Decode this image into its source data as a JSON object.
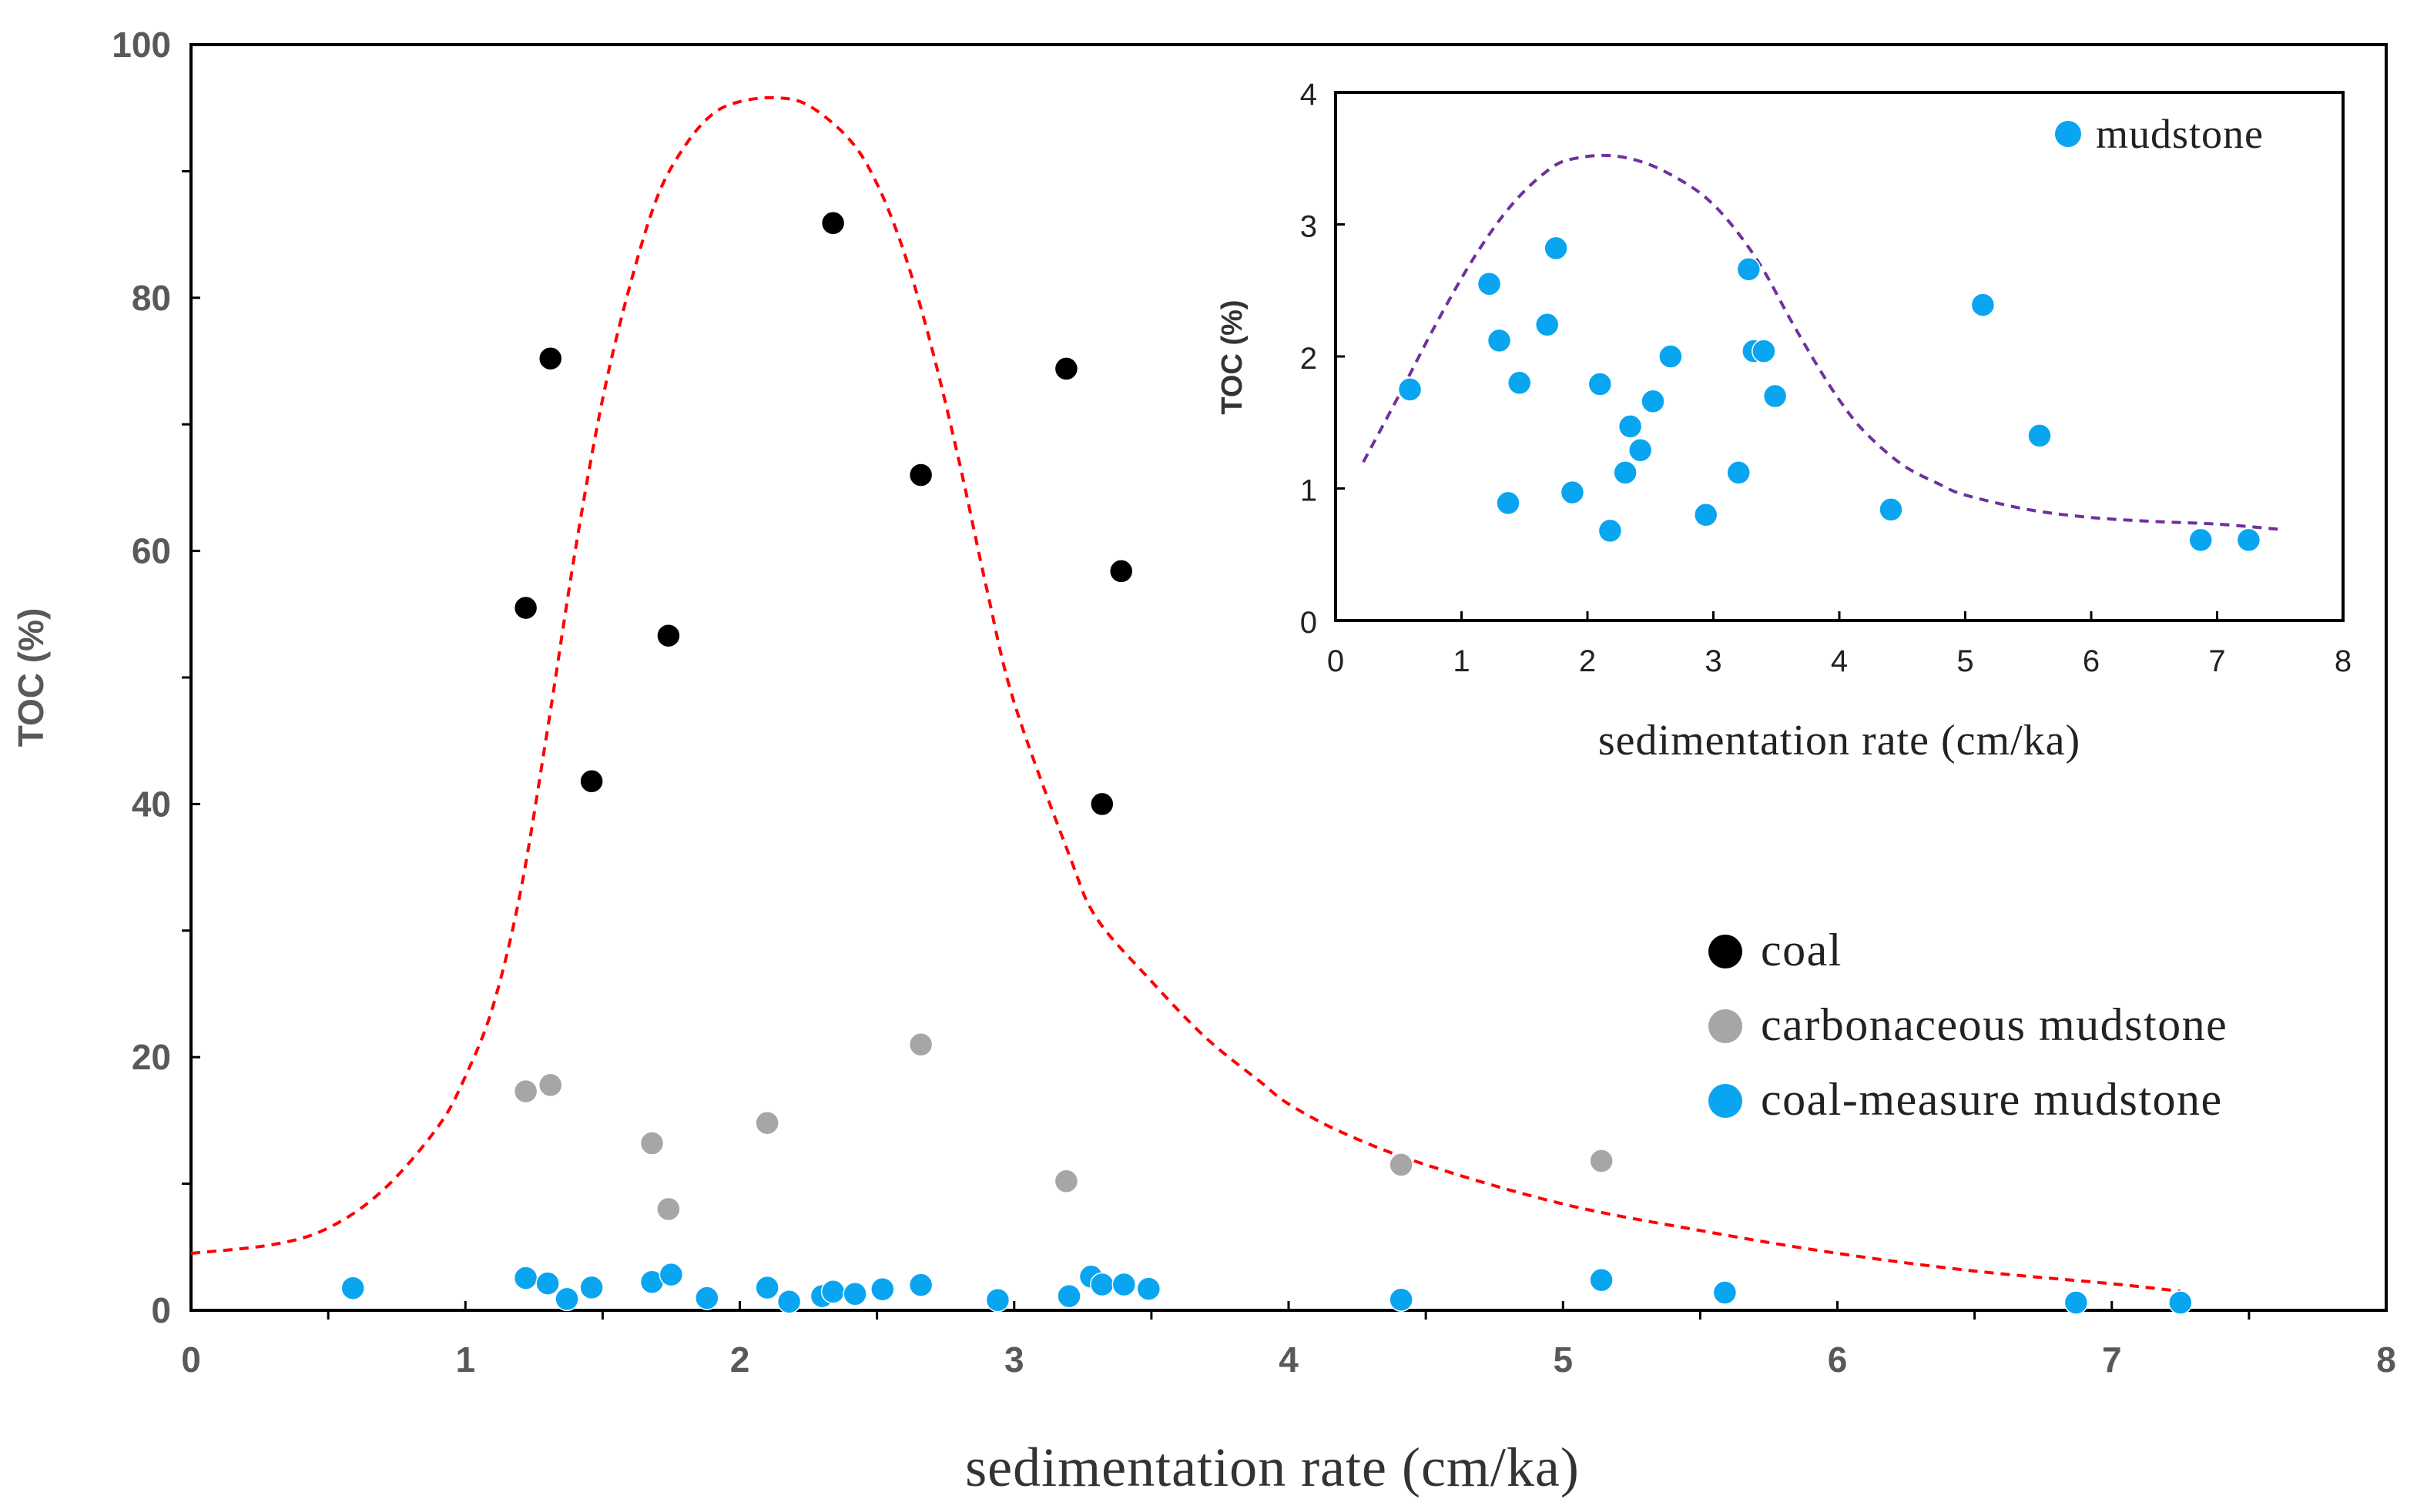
{
  "chart_data": [
    {
      "id": "main",
      "type": "scatter",
      "title": "",
      "xlabel": "sedimentation rate (cm/ka)",
      "ylabel": "TOC (%)",
      "xlim": [
        0,
        8
      ],
      "ylim": [
        0,
        100
      ],
      "x_ticks": [
        "0",
        "1",
        "2",
        "3",
        "4",
        "5",
        "6",
        "7",
        "8"
      ],
      "y_ticks": [
        "0",
        "20",
        "40",
        "60",
        "80",
        "100"
      ],
      "grid": false,
      "legend_position": "bottom-right",
      "series": [
        {
          "name": "coal",
          "color": "#000000",
          "points": [
            [
              1.22,
              55.5
            ],
            [
              1.31,
              75.2
            ],
            [
              1.46,
              41.8
            ],
            [
              1.74,
              53.3
            ],
            [
              2.34,
              85.9
            ],
            [
              2.66,
              66.0
            ],
            [
              3.19,
              74.4
            ],
            [
              3.32,
              40.0
            ],
            [
              3.39,
              58.4
            ]
          ]
        },
        {
          "name": "carbonaceous mudstone",
          "color": "#a6a6a6",
          "points": [
            [
              1.22,
              17.3
            ],
            [
              1.31,
              17.8
            ],
            [
              1.68,
              13.2
            ],
            [
              1.74,
              8.0
            ],
            [
              2.1,
              14.8
            ],
            [
              2.66,
              21.0
            ],
            [
              3.19,
              10.2
            ],
            [
              4.41,
              11.5
            ],
            [
              5.14,
              11.8
            ]
          ]
        },
        {
          "name": "coal-measure mudstone",
          "color": "#0aa5f0",
          "points": [
            [
              0.59,
              1.75
            ],
            [
              1.22,
              2.55
            ],
            [
              1.3,
              2.12
            ],
            [
              1.37,
              0.89
            ],
            [
              1.46,
              1.8
            ],
            [
              1.68,
              2.24
            ],
            [
              1.75,
              2.82
            ],
            [
              1.88,
              0.97
            ],
            [
              2.1,
              1.79
            ],
            [
              2.18,
              0.68
            ],
            [
              2.3,
              1.12
            ],
            [
              2.34,
              1.47
            ],
            [
              2.42,
              1.29
            ],
            [
              2.52,
              1.66
            ],
            [
              2.66,
              2.0
            ],
            [
              2.94,
              0.8
            ],
            [
              3.2,
              1.12
            ],
            [
              3.28,
              2.66
            ],
            [
              3.32,
              2.04
            ],
            [
              3.4,
              2.04
            ],
            [
              3.49,
              1.7
            ],
            [
              4.41,
              0.84
            ],
            [
              5.14,
              2.39
            ],
            [
              5.59,
              1.4
            ],
            [
              6.87,
              0.61
            ],
            [
              7.25,
              0.61
            ]
          ]
        }
      ],
      "trend_curve": {
        "style": "dashed",
        "color": "#ff0000",
        "points": [
          [
            0,
            4.5
          ],
          [
            0.3,
            5.2
          ],
          [
            0.5,
            6.5
          ],
          [
            0.7,
            9.5
          ],
          [
            0.9,
            14.5
          ],
          [
            1.0,
            18.5
          ],
          [
            1.1,
            24
          ],
          [
            1.2,
            33
          ],
          [
            1.3,
            46
          ],
          [
            1.4,
            60
          ],
          [
            1.5,
            72
          ],
          [
            1.6,
            81
          ],
          [
            1.7,
            88
          ],
          [
            1.8,
            92
          ],
          [
            1.9,
            94.5
          ],
          [
            2.0,
            95.5
          ],
          [
            2.13,
            95.8
          ],
          [
            2.25,
            95.2
          ],
          [
            2.4,
            92.5
          ],
          [
            2.5,
            89
          ],
          [
            2.6,
            83.5
          ],
          [
            2.7,
            76
          ],
          [
            2.8,
            67
          ],
          [
            2.9,
            57
          ],
          [
            3.0,
            48
          ],
          [
            3.2,
            36
          ],
          [
            3.3,
            31
          ],
          [
            3.5,
            26
          ],
          [
            3.7,
            21.5
          ],
          [
            3.9,
            18
          ],
          [
            4.0,
            16.3
          ],
          [
            4.2,
            14
          ],
          [
            4.5,
            11.5
          ],
          [
            5.0,
            8.4
          ],
          [
            5.5,
            6.3
          ],
          [
            6.0,
            4.5
          ],
          [
            6.5,
            3.1
          ],
          [
            7.0,
            2.1
          ],
          [
            7.25,
            1.5
          ]
        ]
      }
    },
    {
      "id": "inset",
      "type": "scatter",
      "title": "",
      "xlabel": "sedimentation rate (cm/ka)",
      "ylabel": "TOC (%)",
      "xlim": [
        0,
        8
      ],
      "ylim": [
        0,
        4
      ],
      "x_ticks": [
        "0",
        "1",
        "2",
        "3",
        "4",
        "5",
        "6",
        "7",
        "8"
      ],
      "y_ticks": [
        "0",
        "1",
        "2",
        "3",
        "4"
      ],
      "grid": false,
      "legend_position": "top-right",
      "series": [
        {
          "name": "mudstone",
          "color": "#0aa5f0",
          "points": [
            [
              0.59,
              1.75
            ],
            [
              1.22,
              2.55
            ],
            [
              1.3,
              2.12
            ],
            [
              1.37,
              0.89
            ],
            [
              1.46,
              1.8
            ],
            [
              1.68,
              2.24
            ],
            [
              1.75,
              2.82
            ],
            [
              1.88,
              0.97
            ],
            [
              2.1,
              1.79
            ],
            [
              2.18,
              0.68
            ],
            [
              2.3,
              1.12
            ],
            [
              2.34,
              1.47
            ],
            [
              2.42,
              1.29
            ],
            [
              2.52,
              1.66
            ],
            [
              2.66,
              2.0
            ],
            [
              2.94,
              0.8
            ],
            [
              3.2,
              1.12
            ],
            [
              3.28,
              2.66
            ],
            [
              3.32,
              2.04
            ],
            [
              3.4,
              2.04
            ],
            [
              3.49,
              1.7
            ],
            [
              4.41,
              0.84
            ],
            [
              5.14,
              2.39
            ],
            [
              5.59,
              1.4
            ],
            [
              6.87,
              0.61
            ],
            [
              7.25,
              0.61
            ]
          ]
        }
      ],
      "trend_curve": {
        "style": "dashed",
        "color": "#7030a0",
        "points": [
          [
            0.22,
            1.2
          ],
          [
            0.5,
            1.7
          ],
          [
            0.8,
            2.25
          ],
          [
            1.1,
            2.75
          ],
          [
            1.4,
            3.15
          ],
          [
            1.7,
            3.42
          ],
          [
            1.9,
            3.5
          ],
          [
            2.2,
            3.52
          ],
          [
            2.5,
            3.45
          ],
          [
            2.8,
            3.3
          ],
          [
            3.0,
            3.15
          ],
          [
            3.2,
            2.93
          ],
          [
            3.4,
            2.65
          ],
          [
            3.6,
            2.3
          ],
          [
            3.8,
            1.97
          ],
          [
            4.0,
            1.67
          ],
          [
            4.2,
            1.43
          ],
          [
            4.5,
            1.18
          ],
          [
            4.8,
            1.03
          ],
          [
            5.0,
            0.95
          ],
          [
            5.5,
            0.84
          ],
          [
            6.0,
            0.78
          ],
          [
            6.5,
            0.75
          ],
          [
            7.0,
            0.73
          ],
          [
            7.5,
            0.69
          ]
        ]
      }
    }
  ]
}
